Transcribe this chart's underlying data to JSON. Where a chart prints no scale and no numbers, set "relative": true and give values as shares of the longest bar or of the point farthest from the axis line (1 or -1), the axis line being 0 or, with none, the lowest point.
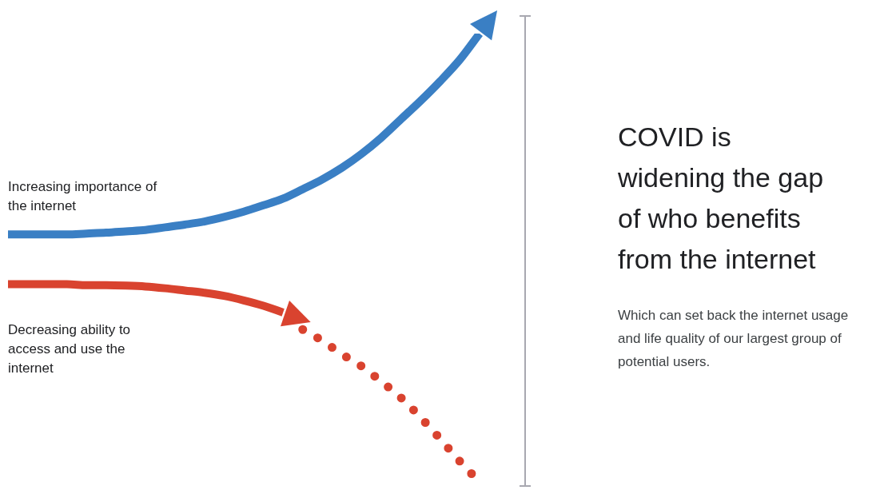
{
  "chart_data": {
    "type": "line",
    "relative": true,
    "title": "COVID is widening the gap of who benefits from the internet",
    "subtitle": "Which can set back the internet usage and life quality of our largest group of potential users.",
    "categories": [
      null,
      null,
      null,
      null,
      null,
      null,
      null,
      null,
      null,
      null,
      null,
      null,
      null,
      null,
      null,
      null,
      null,
      null,
      null,
      null,
      null,
      null,
      null,
      null,
      null
    ],
    "series": [
      {
        "name": "Increasing importance of the internet",
        "color": "#3a7fc4",
        "line_style": "solid",
        "values": [
          0.552,
          0.552,
          0.552,
          0.552,
          0.554,
          0.556,
          0.559,
          0.562,
          0.568,
          0.574,
          0.581,
          0.591,
          0.603,
          0.617,
          0.632,
          0.653,
          0.675,
          0.701,
          0.732,
          0.768,
          0.809,
          0.85,
          0.894,
          0.942,
          1
        ]
      },
      {
        "name": "Decreasing ability to access and use the internet",
        "color": "#d9432f",
        "line_style": "solid",
        "values": [
          0.441,
          0.441,
          0.441,
          0.441,
          0.439,
          0.439,
          0.438,
          0.436,
          0.432,
          0.427,
          0.422,
          0.415,
          0.405,
          0.393,
          0.378,
          null,
          null,
          null,
          null,
          null,
          null,
          null,
          null,
          null,
          null
        ]
      },
      {
        "color": "#d9432f",
        "line_style": "dotted",
        "values": [
          null,
          null,
          null,
          null,
          null,
          null,
          null,
          null,
          null,
          null,
          null,
          null,
          null,
          null,
          null,
          0.34,
          0.315,
          0.285,
          0.258,
          0.224,
          0.188,
          0.144,
          0.096,
          0.046,
          0
        ]
      }
    ]
  }
}
